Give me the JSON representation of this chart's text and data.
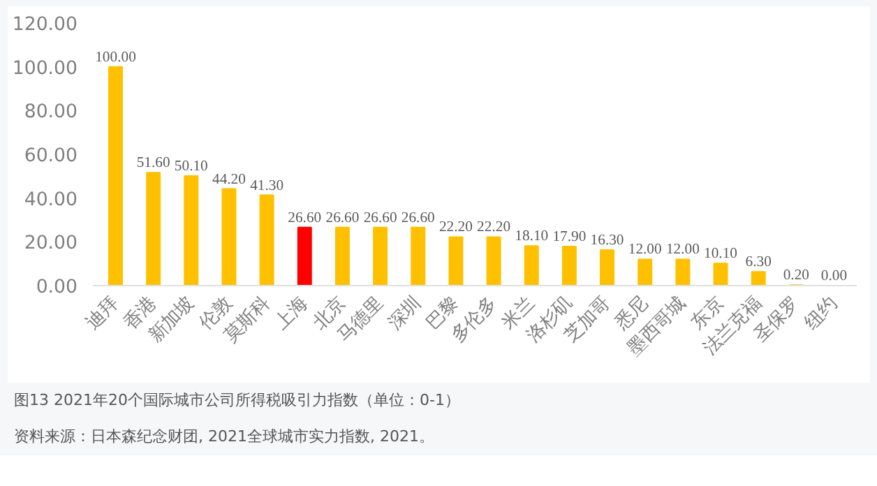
{
  "chart_data": {
    "type": "bar",
    "title": "图13  2021年20个国际城市公司所得税吸引力指数（单位：0-1）",
    "annotations": [
      "资料来源：日本森纪念财团, 2021全球城市实力指数, 2021。"
    ],
    "categories": [
      "迪拜",
      "香港",
      "新加坡",
      "伦敦",
      "莫斯科",
      "上海",
      "北京",
      "马德里",
      "深圳",
      "巴黎",
      "多伦多",
      "米兰",
      "洛杉矶",
      "芝加哥",
      "悉尼",
      "墨西哥城",
      "东京",
      "法兰克福",
      "圣保罗",
      "纽约"
    ],
    "values": [
      100.0,
      51.6,
      50.1,
      44.2,
      41.3,
      26.6,
      26.6,
      26.6,
      26.6,
      22.2,
      22.2,
      18.1,
      17.9,
      16.3,
      12.0,
      12.0,
      10.1,
      6.3,
      0.2,
      0.0
    ],
    "value_labels": [
      "100.00",
      "51.60",
      "50.10",
      "44.20",
      "41.30",
      "26.60",
      "26.60",
      "26.60",
      "26.60",
      "22.20",
      "22.20",
      "18.10",
      "17.90",
      "16.30",
      "12.00",
      "12.00",
      "10.10",
      "6.30",
      "0.20",
      "0.00"
    ],
    "colors": [
      "#ffc000",
      "#ffc000",
      "#ffc000",
      "#ffc000",
      "#ffc000",
      "#ff0000",
      "#ffc000",
      "#ffc000",
      "#ffc000",
      "#ffc000",
      "#ffc000",
      "#ffc000",
      "#ffc000",
      "#ffc000",
      "#ffc000",
      "#ffc000",
      "#ffc000",
      "#ffc000",
      "#ffc000",
      "#ffc000"
    ],
    "ylim": [
      0,
      120
    ],
    "yticks": [
      {
        "value": 0,
        "label": "0.00"
      },
      {
        "value": 20,
        "label": "20.00"
      },
      {
        "value": 40,
        "label": "40.00"
      },
      {
        "value": 60,
        "label": "60.00"
      },
      {
        "value": 80,
        "label": "80.00"
      },
      {
        "value": 100,
        "label": "100.00"
      },
      {
        "value": 120,
        "label": "120.00"
      }
    ],
    "grid": false
  }
}
